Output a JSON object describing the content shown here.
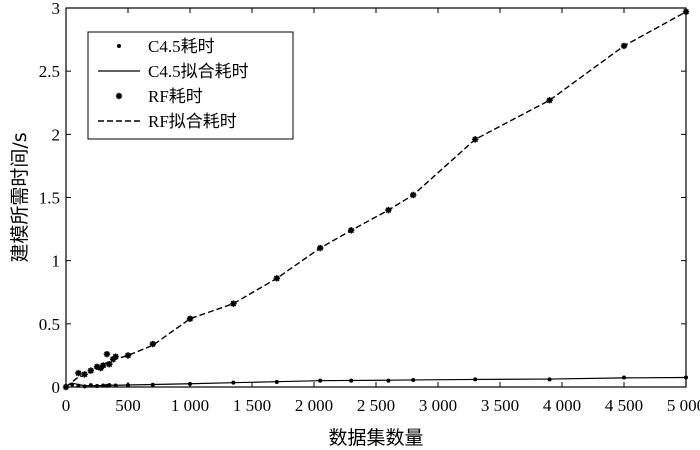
{
  "chart_data": {
    "type": "line",
    "xlabel": "数据集数量",
    "ylabel": "建模所需时间/s",
    "xlim": [
      0,
      5000
    ],
    "ylim": [
      0,
      3
    ],
    "xticks": [
      0,
      500,
      1000,
      1500,
      2000,
      2500,
      3000,
      3500,
      4000,
      4500,
      5000
    ],
    "xtick_labels": [
      "0",
      "500",
      "1 000",
      "1 500",
      "2 000",
      "2 500",
      "3 000",
      "3 500",
      "4 000",
      "4 500",
      "5 000"
    ],
    "yticks": [
      0,
      0.5,
      1,
      1.5,
      2,
      2.5,
      3
    ],
    "ytick_labels": [
      "0",
      "0.5",
      "1",
      "1.5",
      "2",
      "2.5",
      "3"
    ],
    "grid": false,
    "legend_position": "top-left",
    "series": [
      {
        "name": "C4.5耗时",
        "style": "points-dot",
        "x": [
          0,
          50,
          100,
          150,
          200,
          250,
          300,
          330,
          350,
          400,
          500,
          700,
          1000,
          1350,
          1700,
          2050,
          2300,
          2600,
          2800,
          3300,
          3900,
          4500,
          5000
        ],
        "y": [
          0.005,
          0.02,
          0.01,
          0.005,
          0.015,
          0.008,
          0.012,
          0.01,
          0.015,
          0.012,
          0.015,
          0.018,
          0.025,
          0.035,
          0.04,
          0.05,
          0.05,
          0.05,
          0.055,
          0.06,
          0.06,
          0.075,
          0.075
        ]
      },
      {
        "name": "C4.5拟合耗时",
        "style": "solid",
        "x": [
          0,
          50,
          100,
          150,
          200,
          250,
          300,
          330,
          350,
          400,
          500,
          700,
          1000,
          1350,
          1700,
          2050,
          2300,
          2600,
          2800,
          3300,
          3900,
          4500,
          5000
        ],
        "y": [
          0.005,
          0.03,
          0.02,
          0.01,
          0.01,
          0.01,
          0.012,
          0.012,
          0.014,
          0.014,
          0.016,
          0.02,
          0.026,
          0.034,
          0.042,
          0.05,
          0.052,
          0.054,
          0.056,
          0.06,
          0.063,
          0.072,
          0.075
        ]
      },
      {
        "name": "RF耗时",
        "style": "points-star",
        "x": [
          0,
          100,
          150,
          200,
          250,
          280,
          300,
          330,
          350,
          380,
          400,
          500,
          700,
          1000,
          1350,
          1700,
          2050,
          2300,
          2600,
          2800,
          3300,
          3900,
          4500,
          5000
        ],
        "y": [
          0.0,
          0.11,
          0.1,
          0.13,
          0.16,
          0.15,
          0.17,
          0.26,
          0.18,
          0.22,
          0.24,
          0.25,
          0.34,
          0.54,
          0.66,
          0.86,
          1.1,
          1.24,
          1.4,
          1.52,
          1.96,
          2.27,
          2.7,
          2.97
        ]
      },
      {
        "name": "RF拟合耗时",
        "style": "dashed",
        "x": [
          0,
          100,
          150,
          200,
          250,
          300,
          350,
          400,
          500,
          700,
          1000,
          1350,
          1700,
          2050,
          2300,
          2600,
          2800,
          3300,
          3900,
          4500,
          5000
        ],
        "y": [
          0.0,
          0.08,
          0.09,
          0.12,
          0.15,
          0.18,
          0.2,
          0.22,
          0.25,
          0.33,
          0.54,
          0.66,
          0.86,
          1.1,
          1.24,
          1.4,
          1.52,
          1.96,
          2.27,
          2.7,
          2.97
        ]
      }
    ]
  }
}
